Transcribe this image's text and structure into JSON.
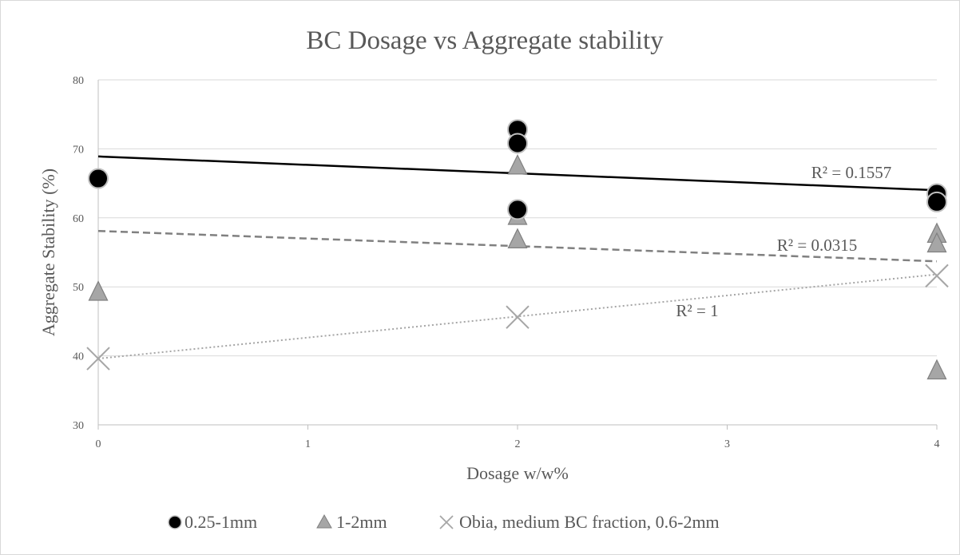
{
  "chart_data": {
    "type": "scatter",
    "title": "BC Dosage vs Aggregate stability",
    "xlabel": "Dosage w/w%",
    "ylabel": "Aggregate Stability (%)",
    "xlim": [
      0,
      4
    ],
    "ylim": [
      30,
      80
    ],
    "x_ticks": [
      0,
      1,
      2,
      3,
      4
    ],
    "x_tick_labels": [
      "0",
      "1",
      "2",
      "3",
      "4"
    ],
    "y_ticks": [
      30,
      40,
      50,
      60,
      70,
      80
    ],
    "grid": "horizontal",
    "legend_position": "bottom",
    "series": [
      {
        "name": "0.25-1mm",
        "marker": "circle",
        "color": "#000000",
        "points": [
          [
            0,
            65.7
          ],
          [
            2,
            72.8
          ],
          [
            2,
            70.8
          ],
          [
            2,
            61.2
          ],
          [
            4,
            63.5
          ],
          [
            4,
            62.3
          ]
        ],
        "trendline": {
          "style": "solid",
          "color": "#000000",
          "start": [
            0,
            68.9
          ],
          "end": [
            4,
            64.0
          ],
          "r2_label": "R² = 0.1557"
        }
      },
      {
        "name": "1-2mm",
        "marker": "triangle",
        "color": "#a6a6a6",
        "points": [
          [
            0,
            49.2
          ],
          [
            2,
            67.5
          ],
          [
            2,
            60.2
          ],
          [
            2,
            56.8
          ],
          [
            4,
            57.6
          ],
          [
            4,
            56.2
          ],
          [
            4,
            37.8
          ]
        ],
        "trendline": {
          "style": "dashed",
          "color": "#808080",
          "start": [
            0,
            58.1
          ],
          "end": [
            4,
            53.7
          ],
          "r2_label": "R² = 0.0315"
        }
      },
      {
        "name": "Obia, medium BC fraction, 0.6-2mm",
        "marker": "x",
        "color": "#a6a6a6",
        "points": [
          [
            0,
            39.6
          ],
          [
            2,
            45.6
          ],
          [
            4,
            51.6
          ]
        ],
        "trendline": {
          "style": "dotted",
          "color": "#a6a6a6",
          "start": [
            0,
            39.6
          ],
          "end": [
            4,
            51.8
          ],
          "r2_label": "R² = 1"
        }
      }
    ]
  }
}
